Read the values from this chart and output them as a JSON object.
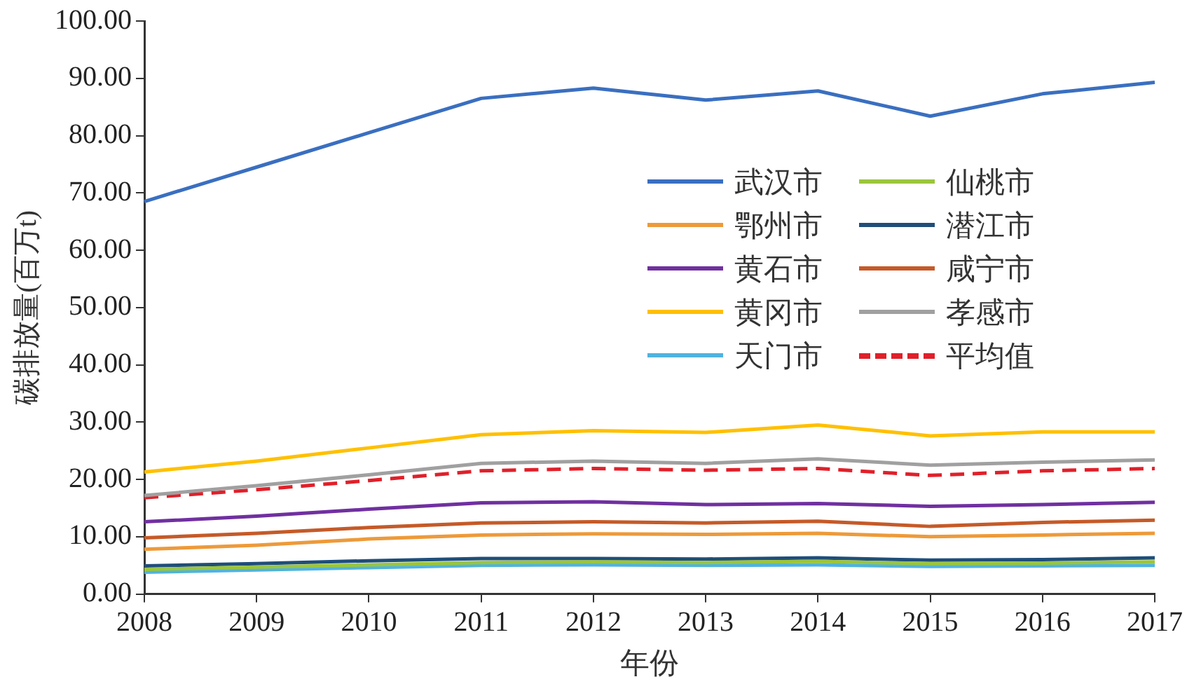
{
  "chart_data": {
    "type": "line",
    "xlabel": "年份",
    "ylabel": "碳排放量(百万t)",
    "categories": [
      "2008",
      "2009",
      "2010",
      "2011",
      "2012",
      "2013",
      "2014",
      "2015",
      "2016",
      "2017"
    ],
    "ylim": [
      0,
      100
    ],
    "yticks": [
      {
        "value": 0,
        "label": "0.00"
      },
      {
        "value": 10,
        "label": "10.00"
      },
      {
        "value": 20,
        "label": "20.00"
      },
      {
        "value": 30,
        "label": "30.00"
      },
      {
        "value": 40,
        "label": "40.00"
      },
      {
        "value": 50,
        "label": "50.00"
      },
      {
        "value": 60,
        "label": "60.00"
      },
      {
        "value": 70,
        "label": "70.00"
      },
      {
        "value": 80,
        "label": "80.00"
      },
      {
        "value": 90,
        "label": "90.00"
      },
      {
        "value": 100,
        "label": "100.00"
      }
    ],
    "grid": false,
    "legend": "right",
    "marker": "none",
    "series": [
      {
        "name": "武汉市",
        "color": "#3a6fc0",
        "values": [
          68.5,
          74.5,
          80.5,
          86.5,
          88.3,
          86.2,
          87.8,
          83.4,
          87.3,
          89.3
        ]
      },
      {
        "name": "仙桃市",
        "color": "#9bc53d",
        "values": [
          4.3,
          4.7,
          5.1,
          5.5,
          5.6,
          5.5,
          5.7,
          5.3,
          5.4,
          5.6
        ]
      },
      {
        "name": "鄂州市",
        "color": "#ed9a3a",
        "values": [
          7.8,
          8.5,
          9.6,
          10.3,
          10.5,
          10.4,
          10.6,
          10.0,
          10.3,
          10.6
        ]
      },
      {
        "name": "潜江市",
        "color": "#1f4e79",
        "values": [
          4.9,
          5.3,
          5.8,
          6.2,
          6.2,
          6.1,
          6.3,
          5.9,
          6.0,
          6.3
        ]
      },
      {
        "name": "黄石市",
        "color": "#7030a0",
        "values": [
          12.6,
          13.6,
          14.8,
          15.9,
          16.1,
          15.6,
          15.8,
          15.3,
          15.6,
          16.0
        ]
      },
      {
        "name": "咸宁市",
        "color": "#c55a28",
        "values": [
          9.8,
          10.6,
          11.6,
          12.4,
          12.6,
          12.4,
          12.7,
          11.8,
          12.5,
          12.9
        ]
      },
      {
        "name": "黄冈市",
        "color": "#ffc000",
        "values": [
          21.3,
          23.2,
          25.5,
          27.8,
          28.5,
          28.2,
          29.5,
          27.6,
          28.3,
          28.3
        ]
      },
      {
        "name": "孝感市",
        "color": "#a0a0a0",
        "values": [
          17.2,
          18.9,
          20.8,
          22.8,
          23.2,
          22.8,
          23.6,
          22.5,
          23.0,
          23.4
        ]
      },
      {
        "name": "天门市",
        "color": "#4fb3e0",
        "values": [
          3.8,
          4.2,
          4.6,
          5.0,
          5.1,
          5.0,
          5.1,
          4.8,
          4.9,
          5.0
        ]
      },
      {
        "name": "平均值",
        "color": "#e0202a",
        "line_style": "dashed",
        "values": [
          16.8,
          18.2,
          19.8,
          21.5,
          21.9,
          21.6,
          21.9,
          20.7,
          21.5,
          21.9
        ]
      }
    ]
  }
}
